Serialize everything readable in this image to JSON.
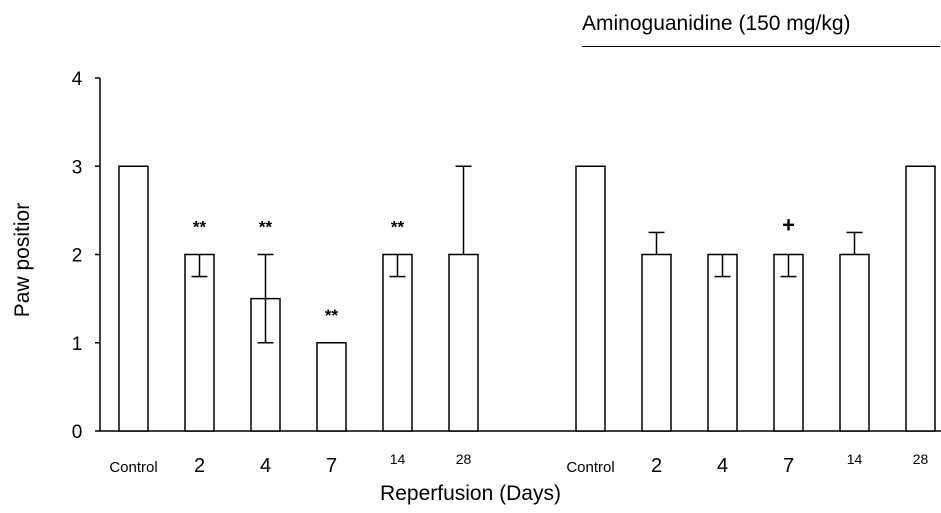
{
  "chart_data": {
    "type": "bar",
    "xlabel": "Reperfusion (Days)",
    "ylabel": "Paw positior",
    "ylim": [
      0,
      4
    ],
    "yticks": [
      0,
      1,
      2,
      3,
      4
    ],
    "grid": false,
    "annotation": "Aminoguanidine (150 mg/kg)",
    "groups": [
      {
        "bars": [
          {
            "category": "Control",
            "value": 3,
            "err_low": 0,
            "err_high": 0,
            "mark": ""
          },
          {
            "category": "2",
            "value": 2,
            "err_low": 0.25,
            "err_high": 0,
            "mark": "**"
          },
          {
            "category": "4",
            "value": 1.5,
            "err_low": 0.5,
            "err_high": 0.5,
            "mark": "**"
          },
          {
            "category": "7",
            "value": 1,
            "err_low": 0,
            "err_high": 0,
            "mark": "**"
          },
          {
            "category": "14",
            "value": 2,
            "err_low": 0.25,
            "err_high": 0,
            "mark": "**"
          },
          {
            "category": "28",
            "value": 2,
            "err_low": 0,
            "err_high": 1,
            "mark": ""
          }
        ]
      },
      {
        "bars": [
          {
            "category": "Control",
            "value": 3,
            "err_low": 0,
            "err_high": 0,
            "mark": ""
          },
          {
            "category": "2",
            "value": 2,
            "err_low": 0,
            "err_high": 0.25,
            "mark": ""
          },
          {
            "category": "4",
            "value": 2,
            "err_low": 0.25,
            "err_high": 0,
            "mark": ""
          },
          {
            "category": "7",
            "value": 2,
            "err_low": 0.25,
            "err_high": 0,
            "mark": "+"
          },
          {
            "category": "14",
            "value": 2,
            "err_low": 0,
            "err_high": 0.25,
            "mark": ""
          },
          {
            "category": "28",
            "value": 3,
            "err_low": 0,
            "err_high": 0,
            "mark": ""
          }
        ]
      }
    ]
  }
}
